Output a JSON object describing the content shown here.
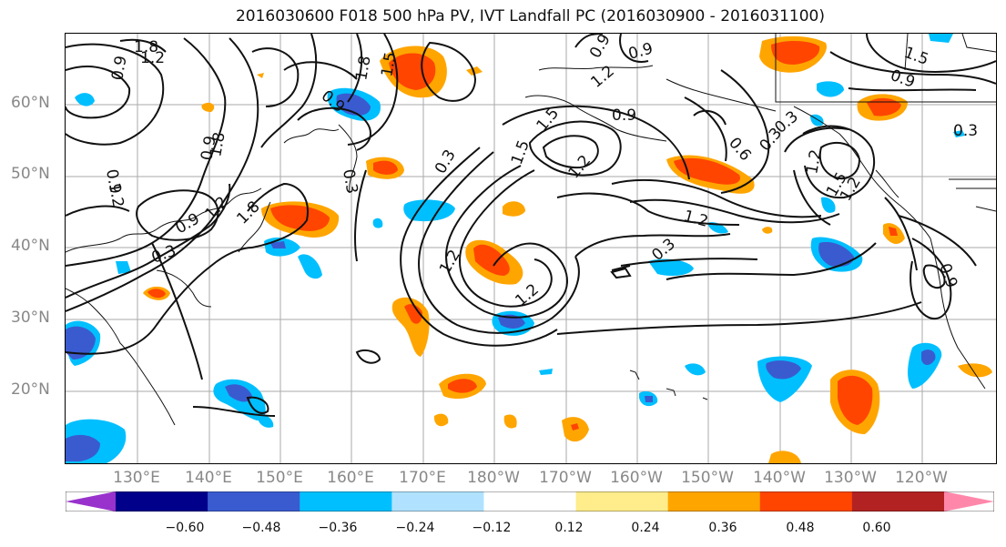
{
  "title": "2016030600 F018 500 hPa PV, IVT Landfall PC (2016030900 - 2016031100)",
  "map": {
    "lat_labels": [
      "60°N",
      "50°N",
      "40°N",
      "30°N",
      "20°N"
    ],
    "lon_labels": [
      "130°E",
      "140°E",
      "150°E",
      "160°E",
      "170°E",
      "180°W",
      "170°W",
      "160°W",
      "150°W",
      "140°W",
      "130°W",
      "120°W"
    ],
    "contour_labels": [
      "1.8",
      "0.9",
      "1.2",
      "0.9",
      "1.8",
      "1.5",
      "0.9",
      "0.3",
      "1.2",
      "0.9",
      "1.8",
      "0.9",
      "1.2",
      "0.3",
      "1.8",
      "1.5",
      "1.5",
      "1.2",
      "0.3",
      "0.9",
      "0.6",
      "0.3",
      "1.2",
      "1.2",
      "1.2",
      "1.2",
      "0.3",
      "0.9",
      "0.9",
      "1.2",
      "0.3",
      "0.9",
      "1.5",
      "1.2",
      "1.5",
      "0.9",
      "0.3"
    ]
  },
  "colorbar": {
    "colors": [
      "#9932cc",
      "#00008b",
      "#3a5bd0",
      "#00bfff",
      "#b0e2ff",
      "#ffffff",
      "#ffec8b",
      "#ffa500",
      "#ff4500",
      "#b22222",
      "#ff88aa"
    ],
    "tick_labels": [
      "−0.60",
      "−0.48",
      "−0.36",
      "−0.24",
      "−0.12",
      "0.12",
      "0.24",
      "0.36",
      "0.48",
      "0.60"
    ]
  }
}
